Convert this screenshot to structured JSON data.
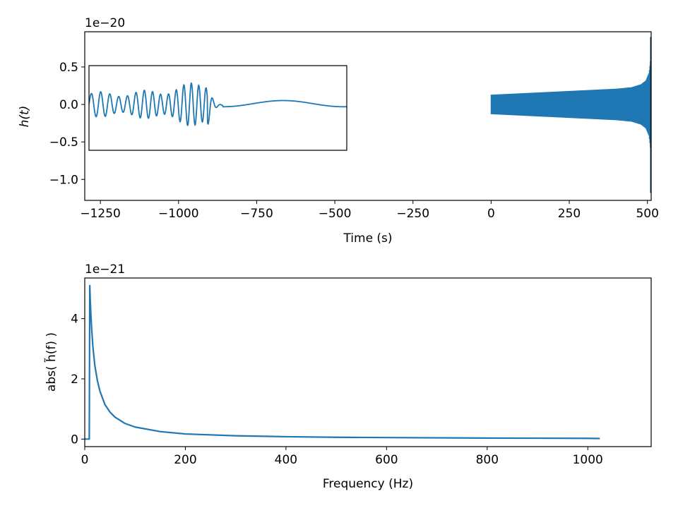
{
  "chart_data": [
    {
      "type": "line",
      "title": "",
      "xlabel": "Time (s)",
      "ylabel": "h(t)",
      "y_offset_text": "1e−20",
      "xlim": [
        -1300,
        512
      ],
      "ylim": [
        -1.28,
        0.97
      ],
      "x_ticks": [
        -1250,
        -1000,
        -750,
        -500,
        -250,
        0,
        250,
        500
      ],
      "x_tick_labels": [
        "−1250",
        "−1000",
        "−750",
        "−500",
        "−250",
        "0",
        "250",
        "500"
      ],
      "y_ticks": [
        0.5,
        0.0,
        -0.5,
        -1.0
      ],
      "y_tick_labels": [
        "0.5",
        "0.0",
        "−0.5",
        "−1.0"
      ],
      "grid": false,
      "line_color": "#1f77b4",
      "series": [
        {
          "description_values": "inspiral waveform from t=0 to t=512 s; envelope amplitude in units of 1e-20",
          "x": [
            0,
            50,
            100,
            150,
            200,
            250,
            300,
            350,
            400,
            450,
            480,
            495,
            505,
            510,
            512
          ],
          "envelope": [
            0.13,
            0.14,
            0.15,
            0.16,
            0.17,
            0.18,
            0.19,
            0.2,
            0.21,
            0.23,
            0.27,
            0.32,
            0.42,
            0.6,
            0.9
          ],
          "min_value": -1.18
        }
      ],
      "inset": {
        "description_values": "zoom on merger: oscillations then ringdown",
        "box_x": [
          -1290,
          -470
        ],
        "box_y": [
          -0.61,
          0.51
        ]
      }
    },
    {
      "type": "line",
      "title": "",
      "xlabel": "Frequency (Hz)",
      "ylabel": "abs( h̃(f) )",
      "y_offset_text": "1e−21",
      "xlim": [
        0,
        1126
      ],
      "ylim": [
        -0.25,
        5.35
      ],
      "x_ticks": [
        0,
        200,
        400,
        600,
        800,
        1000
      ],
      "x_tick_labels": [
        "0",
        "200",
        "400",
        "600",
        "800",
        "1000"
      ],
      "y_ticks": [
        0,
        2,
        4
      ],
      "y_tick_labels": [
        "0",
        "2",
        "4"
      ],
      "grid": false,
      "line_color": "#1f77b4",
      "series": [
        {
          "x": [
            0,
            9,
            10,
            11,
            12,
            14,
            16,
            20,
            25,
            30,
            40,
            50,
            60,
            80,
            100,
            150,
            200,
            300,
            400,
            500,
            600,
            800,
            1000,
            1024
          ],
          "values": [
            0,
            0,
            5.1,
            4.6,
            4.2,
            3.6,
            3.1,
            2.45,
            1.95,
            1.6,
            1.15,
            0.9,
            0.73,
            0.52,
            0.4,
            0.25,
            0.17,
            0.11,
            0.08,
            0.06,
            0.05,
            0.035,
            0.025,
            0.02
          ]
        }
      ]
    }
  ]
}
